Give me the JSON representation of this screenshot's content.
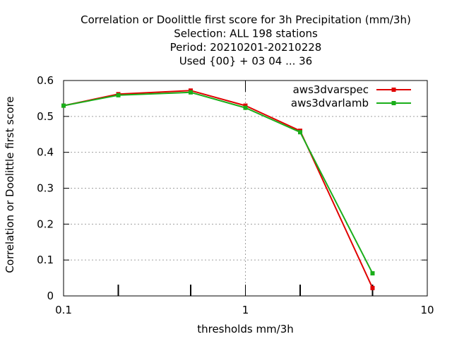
{
  "chart_data": {
    "type": "line",
    "title_lines": [
      "Correlation or Doolittle first score  for 3h Precipitation (mm/3h)",
      "Selection: ALL    198 stations",
      "Period: 20210201-20210228",
      "Used {00} + 03 04 ... 36"
    ],
    "xlabel": "thresholds mm/3h",
    "ylabel": "Correlation or Doolittle first score",
    "x_scale": "log",
    "xlim": [
      0.1,
      10
    ],
    "ylim": [
      0,
      0.6
    ],
    "x_ticks": [
      {
        "value": 0.1,
        "label": "0.1"
      },
      {
        "value": 1,
        "label": "1"
      },
      {
        "value": 10,
        "label": "10"
      }
    ],
    "x_minor_ticks": [
      0.2,
      0.5,
      2,
      5
    ],
    "y_ticks": [
      {
        "value": 0,
        "label": "0"
      },
      {
        "value": 0.1,
        "label": "0.1"
      },
      {
        "value": 0.2,
        "label": "0.2"
      },
      {
        "value": 0.3,
        "label": "0.3"
      },
      {
        "value": 0.4,
        "label": "0.4"
      },
      {
        "value": 0.5,
        "label": "0.5"
      },
      {
        "value": 0.6,
        "label": "0.6"
      }
    ],
    "grid": true,
    "legend_position": "top-right",
    "series": [
      {
        "name": "aws3dvarspec",
        "color": "#e00000",
        "x": [
          0.1,
          0.2,
          0.5,
          1,
          2,
          5
        ],
        "y": [
          0.53,
          0.562,
          0.572,
          0.53,
          0.46,
          0.022
        ]
      },
      {
        "name": "aws3dvarlamb",
        "color": "#1aae1a",
        "x": [
          0.1,
          0.2,
          0.5,
          1,
          2,
          5
        ],
        "y": [
          0.53,
          0.559,
          0.567,
          0.524,
          0.456,
          0.063
        ]
      }
    ]
  }
}
